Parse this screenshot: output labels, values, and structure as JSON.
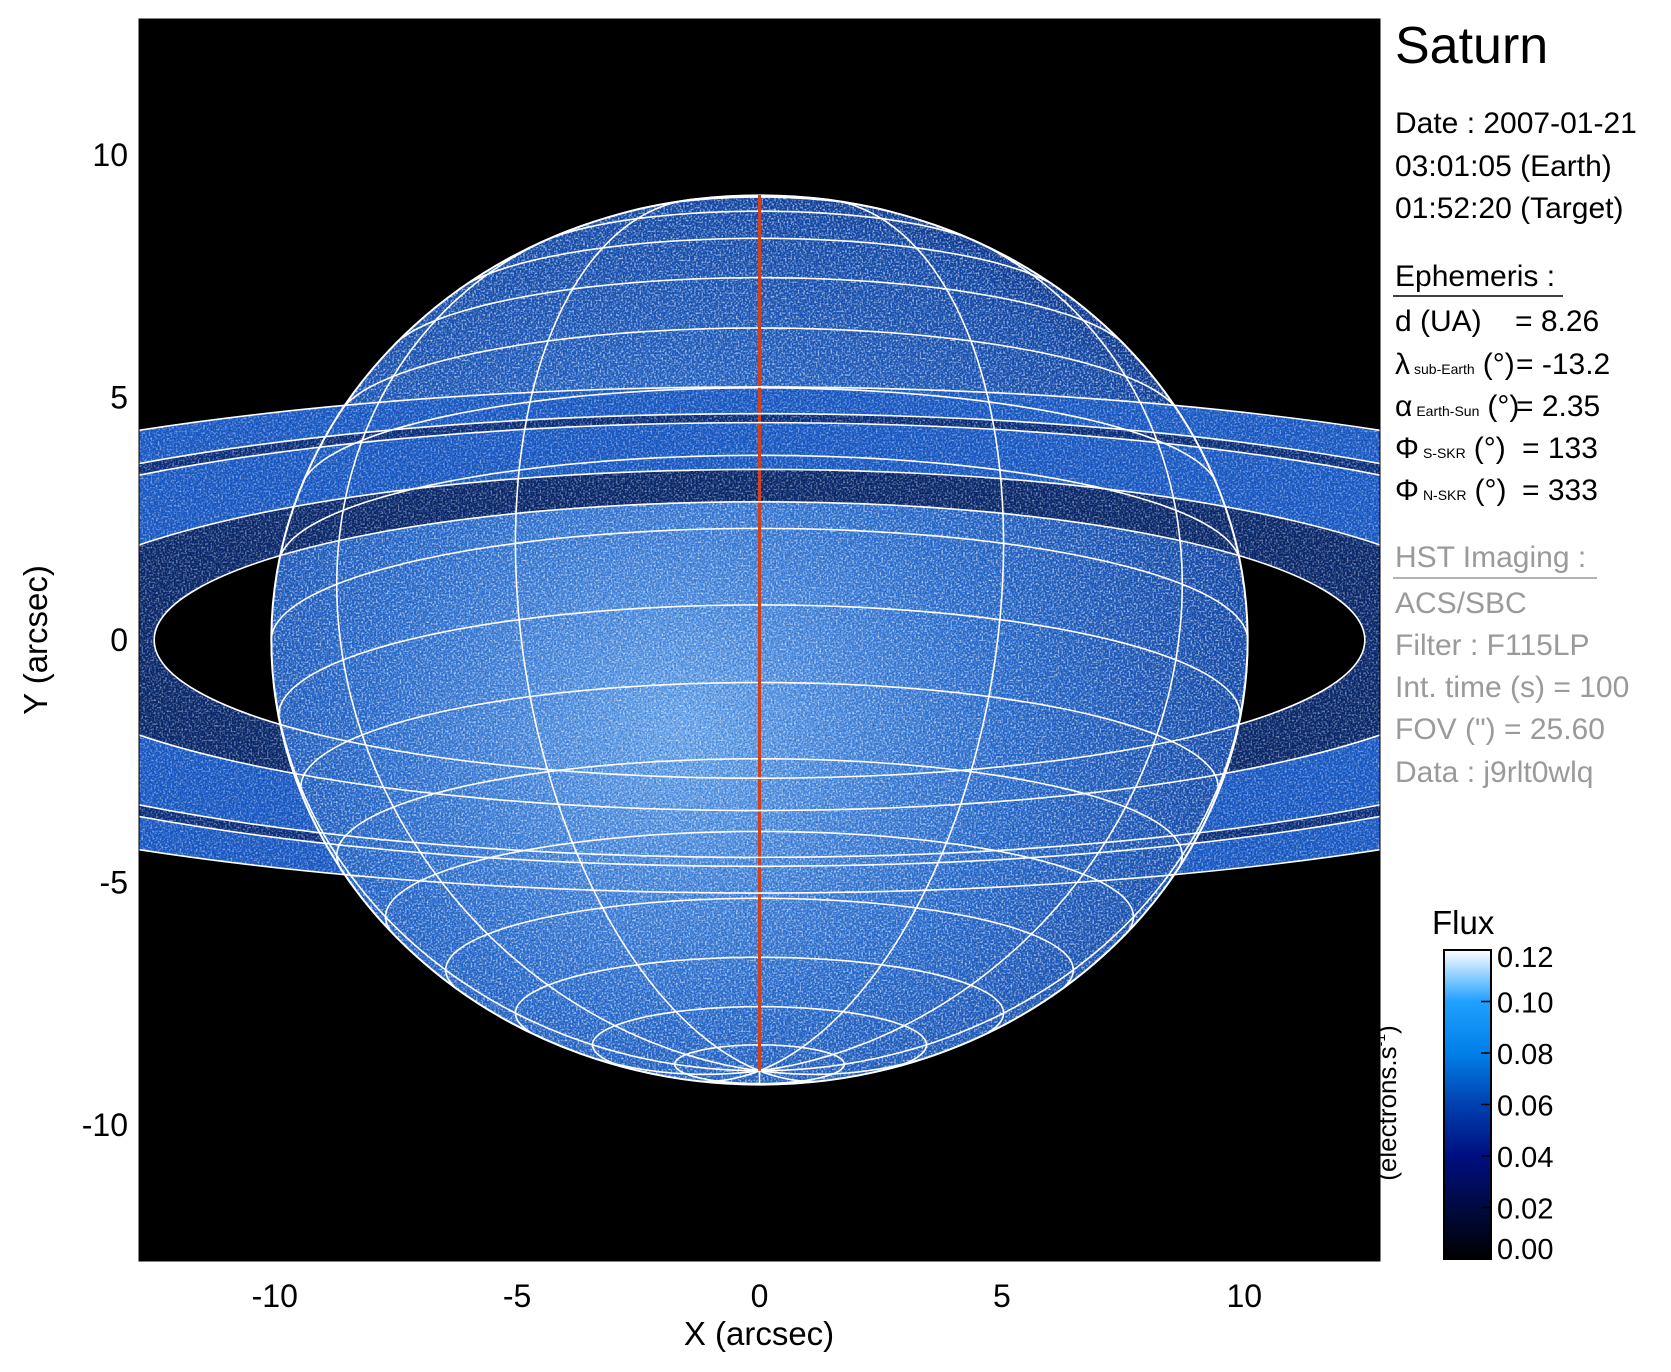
{
  "chart_data": {
    "type": "heatmap",
    "xlabel": "X (arcsec)",
    "ylabel": "Y (arcsec)",
    "xlim": [
      -12.8,
      12.8
    ],
    "ylim": [
      -12.8,
      12.8
    ],
    "xticks": [
      "-10",
      "-5",
      "0",
      "5",
      "10"
    ],
    "yticks": [
      "10",
      "5",
      "0",
      "-5",
      "-10"
    ],
    "colorbar": {
      "title": "Flux",
      "unit": "(electrons.s",
      "unit_sup": "-1",
      "unit_close": ")",
      "range": [
        0.0,
        0.12
      ],
      "ticks": [
        "0.00",
        "0.02",
        "0.04",
        "0.06",
        "0.08",
        "0.10",
        "0.12"
      ],
      "colormap": [
        "#000000",
        "#000a40",
        "#000e80",
        "#0040b0",
        "#0080e8",
        "#20a0ff",
        "#ffffff"
      ]
    },
    "overlay": {
      "globe_grid_color": "#ffffff",
      "central_meridian_color": "#d2401c"
    }
  },
  "info": {
    "target": "Saturn",
    "date_line": "Date : 2007-01-21",
    "time_earth": "03:01:05 (Earth)",
    "time_target": "01:52:20 (Target)",
    "ephemeris_header": "Ephemeris :",
    "ephemeris": [
      {
        "sym": "d (UA)",
        "sub": "",
        "unit": "",
        "value": "= 8.26"
      },
      {
        "sym": "λ",
        "sub": "sub-Earth",
        "unit": "(°)",
        "value": "= -13.2"
      },
      {
        "sym": "α",
        "sub": "Earth-Sun",
        "unit": "(°)",
        "value": "= 2.35"
      },
      {
        "sym": "Φ",
        "sub": "S-SKR",
        "unit": "(°)",
        "value": "= 133"
      },
      {
        "sym": "Φ",
        "sub": "N-SKR",
        "unit": "(°)",
        "value": "= 333"
      }
    ],
    "imaging_header": "HST Imaging :",
    "imaging": [
      "ACS/SBC",
      "Filter : F115LP",
      "Int. time (s) = 100",
      "FOV (\") = 25.60",
      "Data : j9rlt0wlq"
    ]
  }
}
